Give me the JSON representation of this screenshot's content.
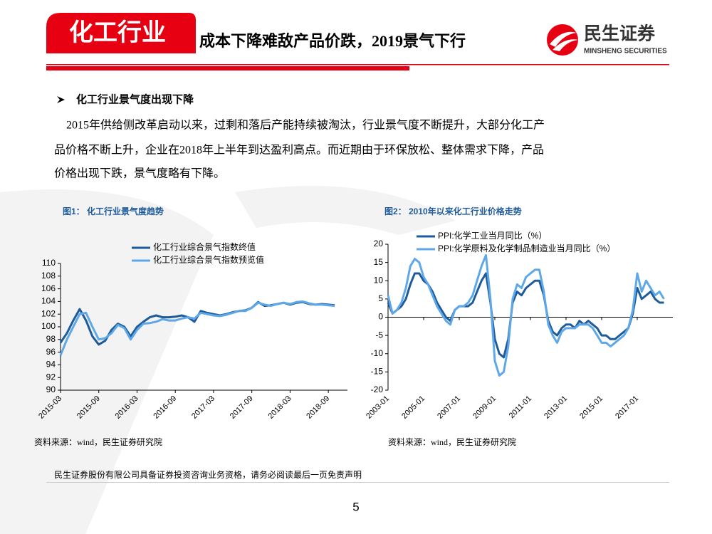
{
  "header": {
    "tag": "化工行业",
    "title": "成本下降难敌产品价跌，2019景气下行",
    "logo_name": "民生证券",
    "logo_subname": "MINSHENG SECURITIES"
  },
  "section": {
    "heading": "化工行业景气度出现下降",
    "paragraph_lines": [
      "2015年供给侧改革启动以来，过剩和落后产能持续被淘汰，行业景气度不断提升，大部分化工产",
      "品价格不断上升，企业在2018年上半年到达盈利高点。而近期由于环保放松、整体需求下降，产品",
      "价格出现下跌，景气度略有下降。"
    ]
  },
  "chart_data": [
    {
      "type": "line",
      "title": "图1： 化工行业景气度趋势",
      "source": "资料来源：wind，民生证券研究院",
      "legend": "top",
      "categories": [
        "2015-03",
        null,
        null,
        null,
        null,
        null,
        "2015-09",
        null,
        null,
        null,
        null,
        null,
        "2016-03",
        null,
        null,
        null,
        null,
        null,
        "2016-09",
        null,
        null,
        null,
        null,
        null,
        "2017-03",
        null,
        null,
        null,
        null,
        null,
        "2017-09",
        null,
        null,
        null,
        null,
        null,
        "2018-03",
        null,
        null,
        null,
        null,
        null,
        "2018-09",
        null
      ],
      "ylim": [
        90,
        110
      ],
      "yticks": [
        90,
        92,
        94,
        96,
        98,
        100,
        102,
        104,
        106,
        108,
        110
      ],
      "series": [
        {
          "name": "化工行业综合景气指数终值",
          "color": "#1f5b9a",
          "values": [
            97.5,
            99,
            101,
            102.8,
            101,
            98.5,
            97.2,
            97.8,
            99.5,
            100.5,
            100,
            98.5,
            100,
            100.8,
            101.5,
            101.8,
            101.5,
            101.5,
            101.6,
            101.8,
            101.5,
            100.8,
            102.5,
            102.2,
            102,
            101.8,
            102,
            102.3,
            102.5,
            102.6,
            103,
            103.9,
            103.3,
            103.4,
            103.6,
            103.8,
            103.5,
            103.8,
            103.9,
            103.6,
            103.5,
            103.6,
            103.5,
            103.4
          ]
        },
        {
          "name": "化工行业综合景气指数预览值",
          "color": "#5fa8e8",
          "values": [
            95.5,
            98,
            100,
            102,
            102.2,
            100,
            98,
            98.2,
            99,
            100.3,
            99.8,
            98,
            99.5,
            100.5,
            100.6,
            100.8,
            101.2,
            101,
            101,
            101.3,
            101.5,
            101.3,
            102.2,
            102,
            101.8,
            101.7,
            101.9,
            102.2,
            102.5,
            102.5,
            103,
            103.8,
            103.5,
            103.3,
            103.6,
            103.8,
            103.6,
            103.9,
            104,
            103.7,
            103.5,
            103.5,
            103.4,
            103.3
          ]
        }
      ]
    },
    {
      "type": "line",
      "title": "图2： 2010年以来化工行业价格走势",
      "source": "资料来源：wind，民生证券研究院",
      "legend": "top",
      "categories": [
        "2003-01",
        null,
        null,
        null,
        null,
        null,
        null,
        null,
        "2005-01",
        null,
        null,
        null,
        null,
        null,
        null,
        null,
        "2007-01",
        null,
        null,
        null,
        null,
        null,
        null,
        null,
        "2009-01",
        null,
        null,
        null,
        null,
        null,
        null,
        null,
        "2011-01",
        null,
        null,
        null,
        null,
        null,
        null,
        null,
        "2013-01",
        null,
        null,
        null,
        null,
        null,
        null,
        null,
        "2015-01",
        null,
        null,
        null,
        null,
        null,
        null,
        null,
        "2017-01",
        null,
        null,
        null,
        null,
        null,
        null
      ],
      "ylim": [
        -20,
        20
      ],
      "yticks": [
        -20,
        -15,
        -10,
        -5,
        0,
        5,
        10,
        15,
        20
      ],
      "series": [
        {
          "name": "PPI:化学工业当月同比（%）",
          "color": "#1f5b9a",
          "values": [
            4,
            1,
            2,
            3,
            5,
            9,
            12,
            12,
            10,
            9,
            7,
            4,
            2,
            0,
            -1,
            2,
            3,
            3,
            3,
            4,
            7,
            10,
            12,
            4,
            -6,
            -10,
            -11,
            -6,
            4,
            7,
            6,
            8,
            9,
            10,
            10,
            6,
            -1,
            -4,
            -5,
            -3,
            -2,
            -2,
            -3,
            -1,
            -2,
            -1,
            -2,
            -3,
            -5,
            -5,
            -6,
            -6,
            -5,
            -4,
            -3,
            1,
            8,
            5,
            6,
            7,
            5,
            4,
            4
          ]
        },
        {
          "name": "PPI:化学原料及化学制品制造业当月同比（%）",
          "color": "#5fa8e8",
          "values": [
            6,
            1,
            2,
            4,
            8,
            14,
            16,
            15,
            11,
            9,
            6,
            3,
            1,
            -1,
            -2,
            2,
            3,
            3,
            4,
            6,
            10,
            14,
            17,
            5,
            -12,
            -16,
            -15,
            -8,
            5,
            9,
            8,
            11,
            12,
            13,
            13,
            7,
            -2,
            -5,
            -7,
            -4,
            -3,
            -3,
            -3,
            -2,
            -2,
            -2,
            -3,
            -5,
            -7,
            -7,
            -8,
            -7,
            -6,
            -5,
            -3,
            2,
            12,
            7,
            10,
            8,
            6,
            7,
            5
          ]
        }
      ]
    }
  ],
  "footer": {
    "disclaimer": "民生证券股份有限公司具备证券投资咨询业务资格，请务必阅读最后一页免责声明",
    "page": "5"
  }
}
